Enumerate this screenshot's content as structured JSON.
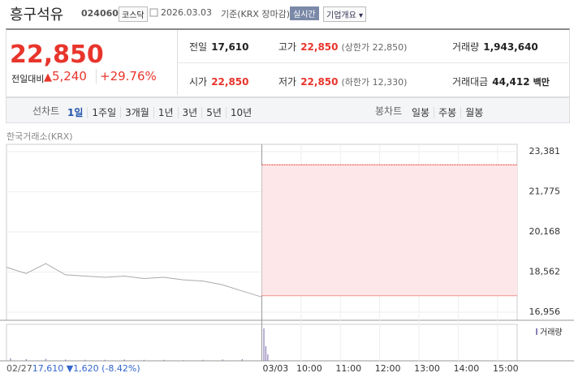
{
  "header": {
    "name": "흥구석유",
    "code": "024060",
    "market": "코스닥",
    "date": "2026.03.03",
    "basis": "기준(KRX 장마감)",
    "realtime": "실시간",
    "overview": "기업개요"
  },
  "price": {
    "current": "22,850",
    "change_label": "전일대비",
    "change": "5,240",
    "rate": "+29.76%"
  },
  "stats": [
    {
      "label": "전일",
      "value": "17,610",
      "color": "#222"
    },
    {
      "label": "고가",
      "value": "22,850",
      "note": "(상한가 22,850)",
      "color": "#e8352c"
    },
    {
      "label": "거래량",
      "value": "1,943,640",
      "color": "#222"
    },
    {
      "label": "시가",
      "value": "22,850",
      "color": "#e8352c"
    },
    {
      "label": "저가",
      "value": "22,850",
      "note": "(하한가 12,330)",
      "color": "#e8352c"
    },
    {
      "label": "거래대금",
      "value": "44,412",
      "unit": "백만",
      "color": "#222"
    }
  ],
  "tabs": {
    "line_label": "선차트",
    "line": [
      "1일",
      "1주일",
      "3개월",
      "1년",
      "3년",
      "5년",
      "10년"
    ],
    "candle_label": "봉차트",
    "candle": [
      "일봉",
      "주봉",
      "월봉"
    ]
  },
  "chart_data": {
    "type": "line",
    "source": "한국거래소(KRX)",
    "ylim": [
      16630,
      23670
    ],
    "yticks": [
      {
        "value": 23381,
        "label": "23,381"
      },
      {
        "value": 21775,
        "label": "21,775"
      },
      {
        "value": 20168,
        "label": "20,168"
      },
      {
        "value": 18562,
        "label": "18,562"
      },
      {
        "value": 16956,
        "label": "16,956"
      }
    ],
    "xlim": [
      -6.5,
      6.5
    ],
    "xticks": [
      {
        "value": 0,
        "label": "03/03"
      },
      {
        "value": 1,
        "label": "10:00"
      },
      {
        "value": 2,
        "label": "11:00"
      },
      {
        "value": 3,
        "label": "12:00"
      },
      {
        "value": 4,
        "label": "13:00"
      },
      {
        "value": 5,
        "label": "14:00"
      },
      {
        "value": 6,
        "label": "15:00"
      }
    ],
    "baseline": 17610,
    "series": [
      {
        "color": "#aaaaaa",
        "x": [
          -6.5,
          -6,
          -5.5,
          -5,
          -4.5,
          -4,
          -3.5,
          -3,
          -2.5,
          -2,
          -1.5,
          -1,
          -0.5,
          0
        ],
        "values": [
          18750,
          18500,
          18900,
          18450,
          18400,
          18350,
          18400,
          18300,
          18350,
          18250,
          18200,
          18050,
          17800,
          17560
        ]
      },
      {
        "color": "#e8352c",
        "x": [
          0,
          6.5
        ],
        "values": [
          22850,
          22850
        ]
      }
    ],
    "volume": {
      "label": "거래량",
      "color": "#8c7fb8",
      "x": [
        -6.4,
        -6,
        -5.5,
        -5,
        -4.5,
        -4,
        -3.5,
        -3,
        -2.5,
        -2,
        -1.5,
        -1,
        -0.5,
        0.05,
        0.1,
        0.15
      ],
      "values": [
        8,
        5,
        6,
        4,
        3,
        3,
        4,
        3,
        3,
        2,
        3,
        4,
        5,
        100,
        45,
        20
      ]
    }
  },
  "footer": {
    "date": "02/27",
    "close": "17,610",
    "change": "1,620",
    "rate": "(-8.42%)"
  }
}
